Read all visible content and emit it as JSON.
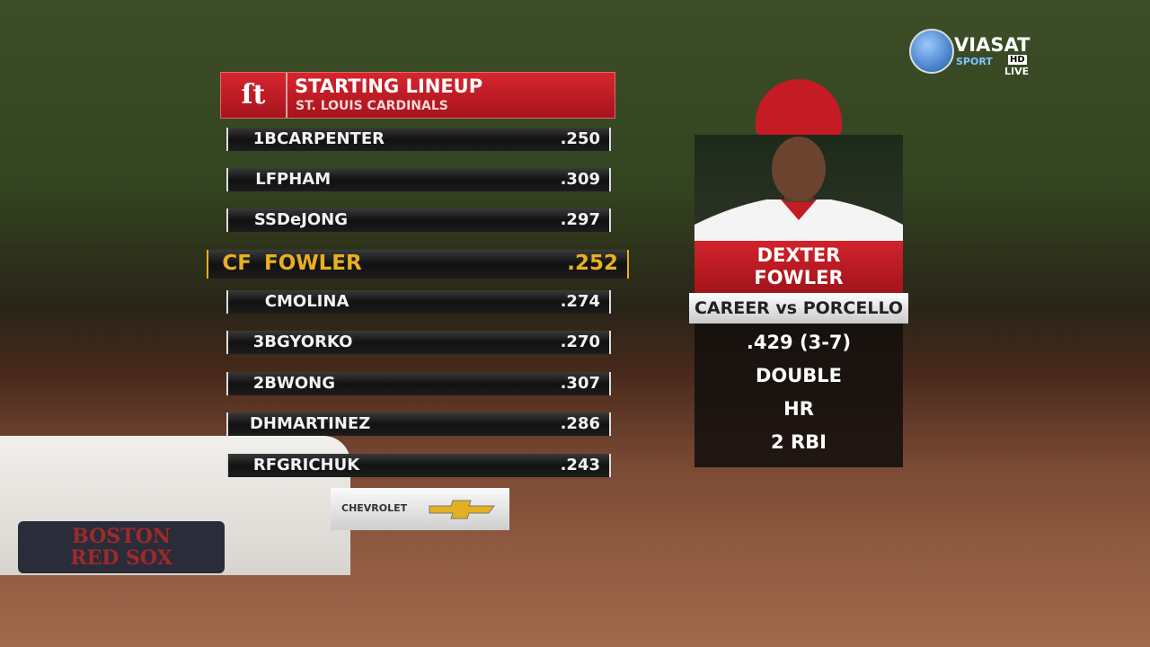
{
  "header": {
    "title": "STARTING LINEUP",
    "subtitle": "ST. LOUIS CARDINALS"
  },
  "lineup": [
    {
      "position": "1B",
      "name": "CARPENTER",
      "avg": ".250"
    },
    {
      "position": "LF",
      "name": "PHAM",
      "avg": ".309"
    },
    {
      "position": "SS",
      "name": "DeJONG",
      "avg": ".297"
    },
    {
      "position": "CF",
      "name": "FOWLER",
      "avg": ".252",
      "highlighted": true
    },
    {
      "position": "C",
      "name": "MOLINA",
      "avg": ".274"
    },
    {
      "position": "3B",
      "name": "GYORKO",
      "avg": ".270"
    },
    {
      "position": "2B",
      "name": "WONG",
      "avg": ".307"
    },
    {
      "position": "DH",
      "name": "MARTINEZ",
      "avg": ".286"
    },
    {
      "position": "RF",
      "name": "GRICHUK",
      "avg": ".243"
    }
  ],
  "player_card": {
    "first_name": "DEXTER",
    "last_name": "FOWLER",
    "matchup": "CAREER vs PORCELLO",
    "stats": [
      ".429 (3-7)",
      "DOUBLE",
      "HR",
      "2 RBI"
    ]
  },
  "sponsor": "CHEVROLET",
  "channel": {
    "name": "VIASAT",
    "sub": "SPORT",
    "hd": "HD",
    "live": "LIVE"
  },
  "base_sign": {
    "line1": "BOSTON",
    "line2": "RED SOX"
  }
}
